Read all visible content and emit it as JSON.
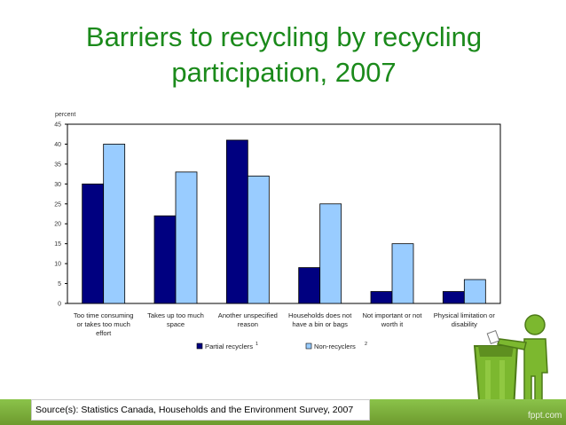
{
  "slide": {
    "title_line1": "Barriers to recycling by recycling",
    "title_line2": "participation, 2007",
    "source": "Source(s):  Statistics Canada, Households and the Environment Survey, 2007",
    "watermark": "fppt.com"
  },
  "chart_data": {
    "type": "bar",
    "ylabel": "percent",
    "ylim": [
      0,
      45
    ],
    "yticks": [
      0,
      5,
      10,
      15,
      20,
      25,
      30,
      35,
      40,
      45
    ],
    "grid": false,
    "legend_position": "bottom",
    "categories": [
      [
        "Too time consuming",
        "or takes too much",
        "effort"
      ],
      [
        "Takes up too much",
        "space"
      ],
      [
        "Another unspecified",
        "reason"
      ],
      [
        "Households does not",
        "have a bin or bags"
      ],
      [
        "Not important or not",
        "worth it"
      ],
      [
        "Physical limitation or",
        "disability"
      ]
    ],
    "series": [
      {
        "name": "Partial recyclers",
        "superscript": "1",
        "color": "#000080",
        "values": [
          30,
          22,
          41,
          9,
          3,
          3
        ]
      },
      {
        "name": "Non-recyclers",
        "superscript": "2",
        "color": "#99ccff",
        "values": [
          40,
          33,
          32,
          25,
          15,
          6
        ]
      }
    ]
  },
  "icons": {
    "recycle": "recycling-bin-person-icon"
  }
}
